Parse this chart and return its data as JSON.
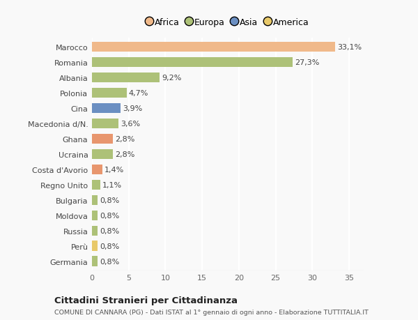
{
  "categories": [
    "Germania",
    "Perù",
    "Russia",
    "Moldova",
    "Bulgaria",
    "Regno Unito",
    "Costa d'Avorio",
    "Ucraina",
    "Ghana",
    "Macedonia d/N.",
    "Cina",
    "Polonia",
    "Albania",
    "Romania",
    "Marocco"
  ],
  "values": [
    0.8,
    0.8,
    0.8,
    0.8,
    0.8,
    1.1,
    1.4,
    2.8,
    2.8,
    3.6,
    3.9,
    4.7,
    9.2,
    27.3,
    33.1
  ],
  "labels": [
    "0,8%",
    "0,8%",
    "0,8%",
    "0,8%",
    "0,8%",
    "1,1%",
    "1,4%",
    "2,8%",
    "2,8%",
    "3,6%",
    "3,9%",
    "4,7%",
    "9,2%",
    "27,3%",
    "33,1%"
  ],
  "colors": [
    "#adc178",
    "#e8c96a",
    "#adc178",
    "#adc178",
    "#adc178",
    "#adc178",
    "#e8966e",
    "#adc178",
    "#e8966e",
    "#adc178",
    "#6b8fc2",
    "#adc178",
    "#adc178",
    "#adc178",
    "#f0b98a"
  ],
  "legend_labels": [
    "Africa",
    "Europa",
    "Asia",
    "America"
  ],
  "legend_colors": [
    "#f0b98a",
    "#adc178",
    "#6b8fc2",
    "#e8c96a"
  ],
  "title": "Cittadini Stranieri per Cittadinanza",
  "subtitle": "COMUNE DI CANNARA (PG) - Dati ISTAT al 1° gennaio di ogni anno - Elaborazione TUTTITALIA.IT",
  "xlim": [
    0,
    37
  ],
  "background_color": "#f9f9f9",
  "bar_height": 0.65,
  "grid_color": "#ffffff",
  "label_fontsize": 8.0,
  "tick_fontsize": 8.0
}
